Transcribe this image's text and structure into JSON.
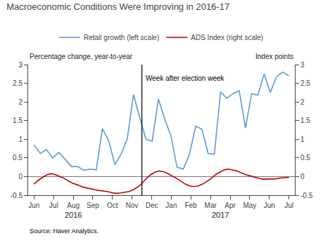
{
  "chart_data": {
    "type": "line",
    "title": "Macroeconomic Conditions Were Improving in 2016-17",
    "ylabel": "Percentage change, year-to-year",
    "y2label": "Index points",
    "source": "Source: Haver Analytics.",
    "xlim": [
      -0.3,
      13.3
    ],
    "xticks": [
      {
        "value": 0,
        "label": "Jun"
      },
      {
        "value": 1,
        "label": "Jul"
      },
      {
        "value": 2,
        "label": "Aug"
      },
      {
        "value": 3,
        "label": "Sep"
      },
      {
        "value": 4,
        "label": "Oct"
      },
      {
        "value": 5,
        "label": "Nov"
      },
      {
        "value": 6,
        "label": "Dec"
      },
      {
        "value": 7,
        "label": "Jan"
      },
      {
        "value": 8,
        "label": "Feb"
      },
      {
        "value": 9,
        "label": "Mar"
      },
      {
        "value": 10,
        "label": "Apr"
      },
      {
        "value": 11,
        "label": "May"
      },
      {
        "value": 12,
        "label": "Jun"
      },
      {
        "value": 13,
        "label": "Jul"
      }
    ],
    "ylim": [
      -0.5,
      3.0
    ],
    "yticks": [
      -0.5,
      0,
      0.5,
      1,
      1.5,
      2,
      2.5,
      3
    ],
    "y2lim": [
      -0.5,
      3.0
    ],
    "y2ticks": [
      -0.5,
      0,
      0.5,
      1,
      1.5,
      2,
      2.5,
      3
    ],
    "series": [
      {
        "name": "Retail growth (left scale)",
        "color": "#5B9BD5",
        "values": [
          0.85,
          0.62,
          0.72,
          0.5,
          0.65,
          0.47,
          0.27,
          0.27,
          0.17,
          0.2,
          0.18,
          1.28,
          0.97,
          0.32,
          0.6,
          1.02,
          2.2,
          1.58,
          1.0,
          0.95,
          2.08,
          1.55,
          1.1,
          0.25,
          0.2,
          0.6,
          1.35,
          1.27,
          0.62,
          0.6,
          2.27,
          2.1,
          2.22,
          2.3,
          1.3,
          2.22,
          2.18,
          2.75,
          2.25,
          2.68,
          2.8,
          2.7
        ]
      },
      {
        "name": "ADS Index (right scale)",
        "color": "#C00000",
        "axis": "y2",
        "values": [
          -0.2,
          -0.1,
          -0.02,
          0.05,
          0.08,
          0.05,
          0.0,
          -0.05,
          -0.12,
          -0.18,
          -0.22,
          -0.27,
          -0.3,
          -0.33,
          -0.35,
          -0.37,
          -0.38,
          -0.4,
          -0.43,
          -0.45,
          -0.44,
          -0.42,
          -0.4,
          -0.35,
          -0.28,
          -0.18,
          -0.05,
          0.05,
          0.12,
          0.15,
          0.13,
          0.08,
          0.02,
          -0.05,
          -0.12,
          -0.2,
          -0.25,
          -0.27,
          -0.25,
          -0.2,
          -0.13,
          -0.05,
          0.05,
          0.12,
          0.18,
          0.2,
          0.18,
          0.15,
          0.1,
          0.05,
          0.02,
          -0.02,
          -0.05,
          -0.07,
          -0.07,
          -0.07,
          -0.06,
          -0.04,
          -0.03,
          -0.02
        ]
      }
    ],
    "reference_lines": [
      {
        "y": 0,
        "color": "#707070"
      },
      {
        "x": 5.5,
        "color": "#000000",
        "label": "Week after election week",
        "label_y": 2.78
      }
    ],
    "annotations": [
      {
        "text": "2016",
        "x": 2
      },
      {
        "text": "2017",
        "x": 9.5
      }
    ],
    "grid": false,
    "legend": "top"
  }
}
